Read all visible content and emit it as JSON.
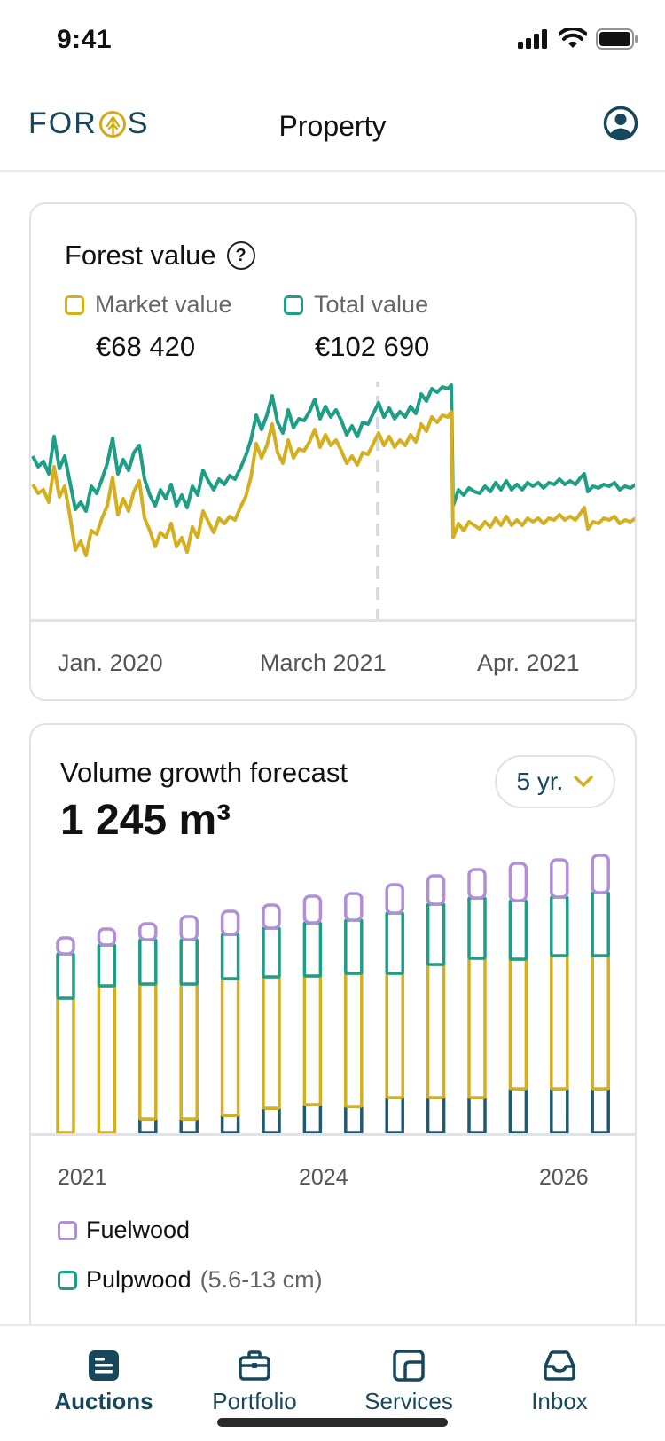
{
  "status_bar": {
    "time": "9:41"
  },
  "header": {
    "logo_left": "FOR",
    "logo_right": "S",
    "title": "Property"
  },
  "forest_value": {
    "title": "Forest value",
    "legend": [
      {
        "label": "Market value",
        "value": "€68 420",
        "color": "#d4af1f"
      },
      {
        "label": "Total value",
        "value": "€102 690",
        "color": "#1e9e85"
      }
    ],
    "x_labels": [
      "Jan. 2020",
      "March 2021",
      "Apr. 2021"
    ]
  },
  "volume": {
    "title": "Volume growth forecast",
    "value": "1 245 m³",
    "range": "5 yr.",
    "x_labels": [
      "2021",
      "2024",
      "2026"
    ],
    "legend": [
      {
        "label": "Fuelwood",
        "note": "",
        "color": "#b08fd6"
      },
      {
        "label": "Pulpwood",
        "note": "(5.6-13 cm)",
        "color": "#1e9e85"
      }
    ]
  },
  "chart_data": {
    "type": "bar",
    "stacked": true,
    "categories": [
      "1",
      "2",
      "3",
      "4",
      "5",
      "6",
      "7",
      "8",
      "9",
      "10",
      "11",
      "12",
      "13",
      "14"
    ],
    "series": [
      {
        "name": "",
        "color": "#1f5a6e",
        "values": [
          0,
          0,
          16,
          16,
          20,
          28,
          32,
          30,
          40,
          40,
          40,
          50,
          50,
          50
        ]
      },
      {
        "name": "",
        "color": "#d4af1f",
        "values": [
          152,
          166,
          152,
          152,
          154,
          148,
          145,
          150,
          140,
          150,
          157,
          146,
          150,
          150
        ]
      },
      {
        "name": "Pulpwood",
        "color": "#1e9e85",
        "values": [
          50,
          46,
          50,
          50,
          50,
          55,
          60,
          60,
          68,
          68,
          68,
          66,
          66,
          71
        ]
      },
      {
        "name": "Fuelwood",
        "color": "#b08fd6",
        "values": [
          18,
          18,
          18,
          26,
          26,
          26,
          30,
          30,
          32,
          32,
          32,
          42,
          42,
          42
        ]
      }
    ],
    "ylim": [
      0,
      320
    ]
  },
  "tabs": [
    {
      "label": "Auctions",
      "icon": "newspaper-icon",
      "active": true
    },
    {
      "label": "Portfolio",
      "icon": "briefcase-icon",
      "active": false
    },
    {
      "label": "Services",
      "icon": "layout-icon",
      "active": false
    },
    {
      "label": "Inbox",
      "icon": "inbox-icon",
      "active": false
    }
  ]
}
